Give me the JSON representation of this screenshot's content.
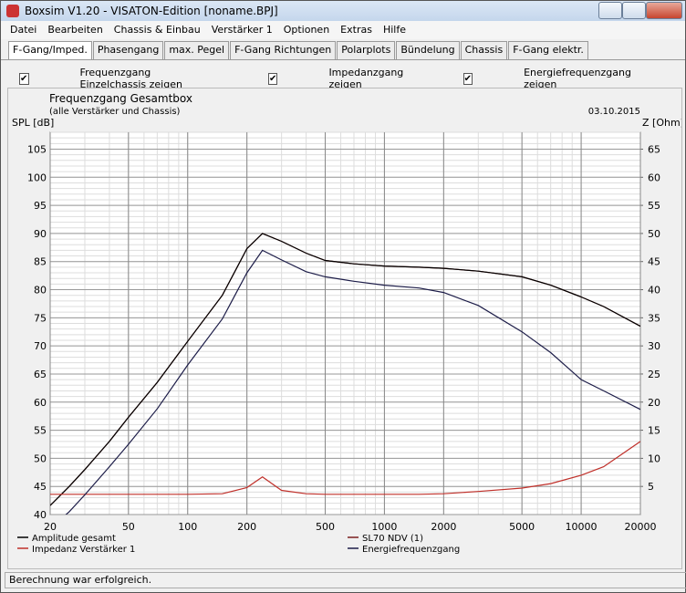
{
  "window": {
    "title": "Boxsim V1.20 - VISATON-Edition [noname.BPJ]"
  },
  "menu": [
    "Datei",
    "Bearbeiten",
    "Chassis & Einbau",
    "Verstärker 1",
    "Optionen",
    "Extras",
    "Hilfe"
  ],
  "tabs": [
    "F-Gang/Imped.",
    "Phasengang",
    "max. Pegel",
    "F-Gang Richtungen",
    "Polarplots",
    "Bündelung",
    "Chassis",
    "F-Gang elektr."
  ],
  "active_tab": 0,
  "checkboxes": [
    {
      "label": "Frequenzgang Einzelchassis zeigen",
      "checked": true
    },
    {
      "label": "Impedanzgang zeigen",
      "checked": true
    },
    {
      "label": "Energiefrequenzgang zeigen",
      "checked": true
    }
  ],
  "chart_data": {
    "type": "line",
    "title": "Frequenzgang Gesamtbox",
    "subtitle": "(alle Verstärker und Chassis)",
    "date": "03.10.2015",
    "y_label": "SPL [dB]",
    "y2_label": "Z [Ohm]",
    "x_log": true,
    "grid": true,
    "x": [
      20,
      25,
      30,
      40,
      50,
      70,
      100,
      150,
      200,
      240,
      300,
      400,
      500,
      700,
      1000,
      1500,
      2000,
      3000,
      5000,
      7000,
      10000,
      13000,
      20000
    ],
    "xlim": [
      20,
      20000
    ],
    "xticks": [
      20,
      50,
      100,
      200,
      500,
      1000,
      2000,
      5000,
      10000,
      20000
    ],
    "ylim": [
      40,
      108
    ],
    "yticks": [
      40,
      45,
      50,
      55,
      60,
      65,
      70,
      75,
      80,
      85,
      90,
      95,
      100,
      105
    ],
    "y2lim": [
      0,
      68
    ],
    "y2ticks": [
      5,
      10,
      15,
      20,
      25,
      30,
      35,
      40,
      45,
      50,
      55,
      60,
      65
    ],
    "series": [
      {
        "name": "Amplitude gesamt",
        "color": "#000000",
        "values": [
          41.6,
          45,
          48,
          53,
          57.3,
          63.5,
          70.8,
          79,
          87.3,
          90,
          88.6,
          86.5,
          85.2,
          84.6,
          84.2,
          84,
          83.8,
          83.3,
          82.3,
          80.8,
          78.7,
          77,
          73.5
        ]
      },
      {
        "name": "Impedanz Verstärker 1",
        "color": "#c0302a",
        "axis": "y2",
        "values": [
          3.6,
          3.6,
          3.6,
          3.6,
          3.6,
          3.6,
          3.6,
          3.7,
          4.8,
          6.7,
          4.3,
          3.7,
          3.6,
          3.6,
          3.6,
          3.6,
          3.7,
          4.1,
          4.7,
          5.5,
          7,
          8.5,
          13
        ]
      },
      {
        "name": "SL70 NDV (1)",
        "color": "#7a1f1f",
        "values": [
          41.6,
          45,
          48,
          53,
          57.3,
          63.5,
          70.8,
          79,
          87.3,
          90,
          88.6,
          86.5,
          85.2,
          84.6,
          84.2,
          84,
          83.8,
          83.3,
          82.3,
          80.8,
          78.7,
          77,
          73.5
        ]
      },
      {
        "name": "Energiefrequenzgang",
        "color": "#1c1c48",
        "values": [
          37.5,
          40.5,
          43.5,
          48.5,
          52.5,
          58.8,
          66.6,
          74.8,
          83,
          87,
          85.3,
          83.2,
          82.3,
          81.5,
          80.8,
          80.3,
          79.5,
          77.2,
          72.5,
          68.8,
          64,
          62,
          58.7
        ]
      }
    ]
  },
  "status": "Berechnung war erfolgreich."
}
